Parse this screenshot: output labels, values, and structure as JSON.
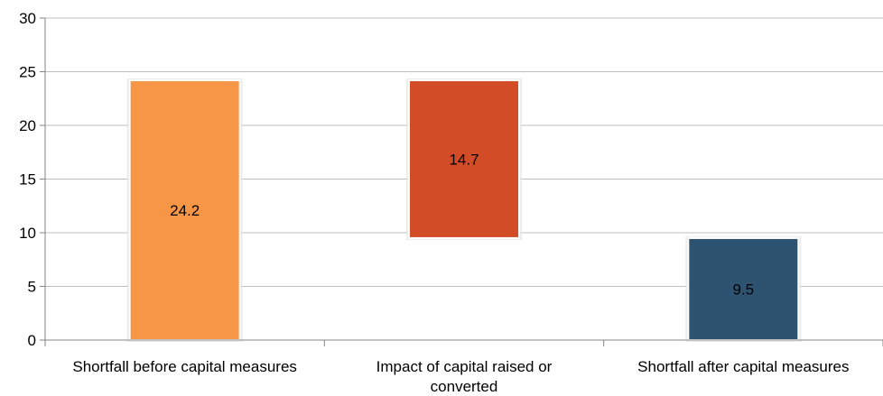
{
  "chart_data": {
    "type": "bar",
    "subtype": "waterfall",
    "categories": [
      [
        "Shortfall before capital measures"
      ],
      [
        "Impact of capital raised or",
        "converted"
      ],
      [
        "Shortfall after capital measures"
      ]
    ],
    "bars": [
      {
        "start": 0,
        "end": 24.2,
        "value_label": "24.2",
        "color": "#F79646"
      },
      {
        "start": 9.5,
        "end": 24.2,
        "value_label": "14.7",
        "color": "#D24D27"
      },
      {
        "start": 0,
        "end": 9.5,
        "value_label": "9.5",
        "color": "#2E5370"
      }
    ],
    "ylim": [
      0,
      30
    ],
    "yticks": [
      0,
      5,
      10,
      15,
      20,
      25,
      30
    ],
    "grid": true,
    "legend": "none",
    "title": "",
    "xlabel": "",
    "ylabel": ""
  }
}
